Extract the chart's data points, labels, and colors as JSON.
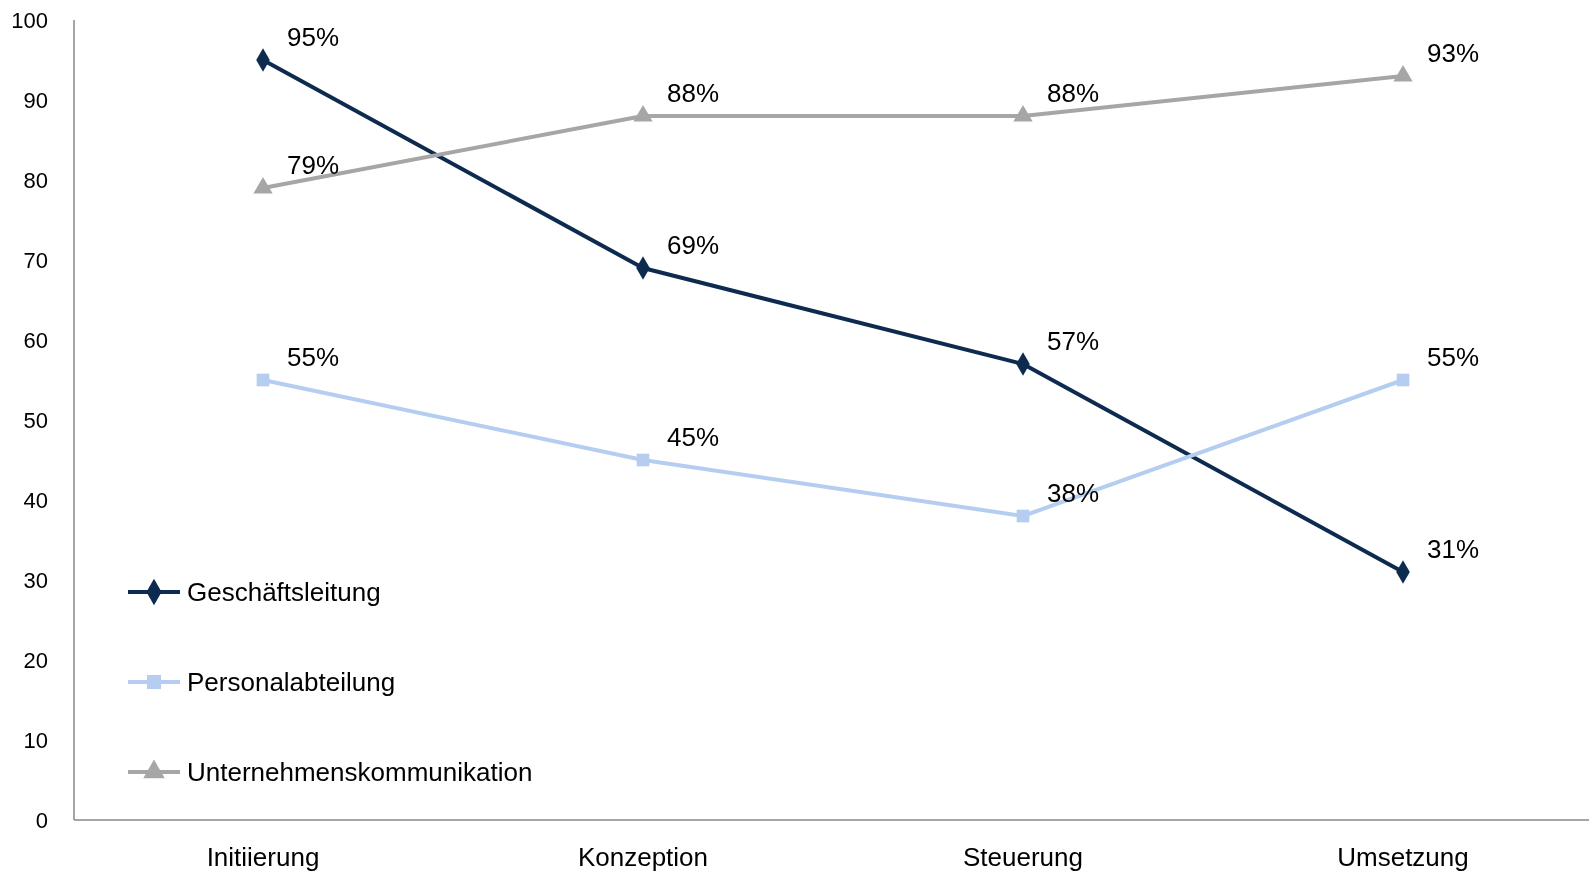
{
  "chart_data": {
    "type": "line",
    "categories": [
      "Initiierung",
      "Konzeption",
      "Steuerung",
      "Umsetzung"
    ],
    "series": [
      {
        "name": "Geschäftsleitung",
        "color": "#0d2a4f",
        "marker": "diamond",
        "values": [
          95,
          69,
          57,
          31
        ],
        "value_labels": [
          "95%",
          "69%",
          "57%",
          "31%"
        ]
      },
      {
        "name": "Personalabteilung",
        "color": "#b4cdf0",
        "marker": "square",
        "values": [
          55,
          45,
          38,
          55
        ],
        "value_labels": [
          "55%",
          "45%",
          "38%",
          "55%"
        ]
      },
      {
        "name": "Unternehmenskommunikation",
        "color": "#a6a6a6",
        "marker": "triangle",
        "values": [
          79,
          88,
          88,
          93
        ],
        "value_labels": [
          "79%",
          "88%",
          "88%",
          "93%"
        ]
      }
    ],
    "ylim": [
      0,
      100
    ],
    "yticks": [
      0,
      10,
      20,
      30,
      40,
      50,
      60,
      70,
      80,
      90,
      100
    ],
    "grid": false,
    "legend": "bottom left"
  }
}
